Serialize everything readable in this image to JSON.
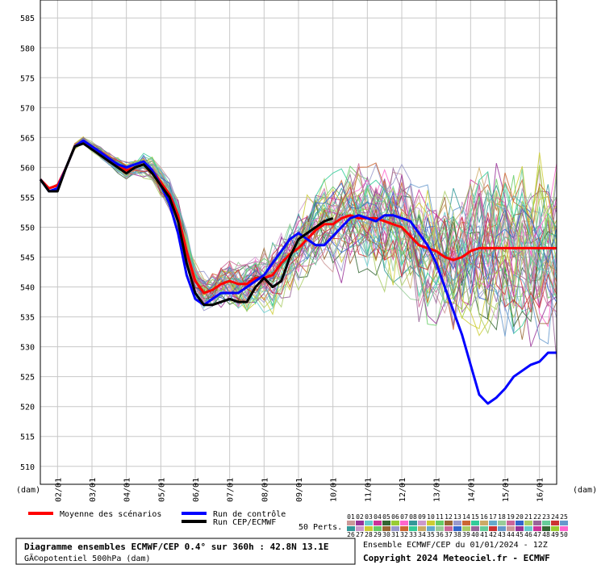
{
  "chart_data": {
    "type": "line",
    "title": "Diagramme ensembles ECMWF/CEP 0.4° sur 360h : 42.8N 13.1E",
    "subtitle": "GÃ©opotentiel 500hPa (dam)",
    "ylabel_left": "(dam)",
    "ylabel_right": "(dam)",
    "ylim": [
      507,
      588
    ],
    "yticks": [
      510,
      515,
      520,
      525,
      530,
      535,
      540,
      545,
      550,
      555,
      560,
      565,
      570,
      575,
      580,
      585
    ],
    "xlim": [
      0,
      120
    ],
    "xticks": [
      {
        "x": 4,
        "label": "02/01"
      },
      {
        "x": 12,
        "label": "03/01"
      },
      {
        "x": 20,
        "label": "04/01"
      },
      {
        "x": 28,
        "label": "05/01"
      },
      {
        "x": 36,
        "label": "06/01"
      },
      {
        "x": 44,
        "label": "07/01"
      },
      {
        "x": 52,
        "label": "08/01"
      },
      {
        "x": 60,
        "label": "09/01"
      },
      {
        "x": 68,
        "label": "10/01"
      },
      {
        "x": 76,
        "label": "11/01"
      },
      {
        "x": 84,
        "label": "12/01"
      },
      {
        "x": 92,
        "label": "13/01"
      },
      {
        "x": 100,
        "label": "14/01"
      },
      {
        "x": 108,
        "label": "15/01"
      },
      {
        "x": 116,
        "label": "16/01"
      }
    ],
    "grid": true,
    "series": [
      {
        "name": "Moyenne des scénarios",
        "color": "#ff0000",
        "x": [
          0,
          2,
          4,
          6,
          8,
          10,
          12,
          14,
          16,
          18,
          20,
          22,
          24,
          26,
          28,
          30,
          32,
          34,
          36,
          38,
          40,
          42,
          44,
          46,
          48,
          50,
          52,
          54,
          56,
          58,
          60,
          62,
          64,
          66,
          68,
          70,
          72,
          74,
          76,
          78,
          80,
          82,
          84,
          86,
          88,
          90,
          92,
          94,
          96,
          98,
          100,
          102,
          104,
          106,
          108,
          110,
          112,
          114,
          116,
          118,
          120
        ],
        "y": [
          558,
          556.5,
          557,
          560,
          563.5,
          564.5,
          563.5,
          562.5,
          561.5,
          560.5,
          559.5,
          560,
          560.5,
          559.5,
          557.5,
          555.5,
          552,
          546,
          541,
          539,
          539.5,
          540.5,
          541,
          540.5,
          540.5,
          541.5,
          541.5,
          542,
          544,
          545.5,
          546.5,
          548,
          549.5,
          550.5,
          550.5,
          551.5,
          552,
          551.5,
          551.5,
          551.5,
          551,
          550.5,
          550,
          548.5,
          547,
          546.5,
          546,
          545,
          544.5,
          545,
          546,
          546.5,
          546.5,
          546.5,
          546.5,
          546.5,
          546.5,
          546.5,
          546.5,
          546.5,
          546.5
        ]
      },
      {
        "name": "Run de contrôle",
        "color": "#0000ff",
        "x": [
          0,
          2,
          4,
          6,
          8,
          10,
          12,
          14,
          16,
          18,
          20,
          22,
          24,
          26,
          28,
          30,
          32,
          34,
          36,
          38,
          40,
          42,
          44,
          46,
          48,
          50,
          52,
          54,
          56,
          58,
          60,
          62,
          64,
          66,
          68,
          70,
          72,
          74,
          76,
          78,
          80,
          82,
          84,
          86,
          88,
          90,
          92,
          94,
          96,
          98,
          100,
          102,
          104,
          106,
          108,
          110,
          112,
          114,
          116,
          118,
          120
        ],
        "y": [
          558,
          556,
          556.5,
          560,
          563.5,
          564.5,
          563.5,
          562.5,
          561.5,
          560.5,
          560,
          560.5,
          561,
          559.5,
          557,
          554,
          549,
          542,
          538,
          537,
          538,
          539,
          539,
          539,
          540,
          541,
          542,
          544,
          546,
          548,
          549,
          548,
          547,
          547,
          548.5,
          550,
          551.5,
          552,
          551.5,
          551,
          552,
          552,
          551.5,
          551,
          549,
          547,
          544,
          540,
          536,
          532,
          527,
          522,
          520.5,
          521.5,
          523,
          525,
          526,
          527,
          527.5,
          529,
          529
        ]
      },
      {
        "name": "Run CEP/ECMWF",
        "color": "#000000",
        "x": [
          0,
          2,
          4,
          6,
          8,
          10,
          12,
          14,
          16,
          18,
          20,
          22,
          24,
          26,
          28,
          30,
          32,
          34,
          36,
          38,
          40,
          42,
          44,
          46,
          48,
          50,
          52,
          54,
          56,
          58,
          60,
          62,
          64,
          66,
          68
        ],
        "y": [
          558,
          556,
          556,
          560,
          563.5,
          564,
          563,
          562,
          561,
          560,
          559,
          560,
          560.5,
          559,
          557,
          555,
          551,
          544,
          539,
          537,
          537,
          537.5,
          538,
          537.5,
          537.5,
          540,
          541.5,
          540,
          541,
          545,
          548,
          549,
          550,
          551,
          551.5
        ]
      }
    ],
    "legend": [
      {
        "label": "Moyenne des scénarios",
        "color": "#ff0000"
      },
      {
        "label": "Run de contrôle",
        "color": "#0000ff"
      },
      {
        "label": "Run CEP/ECMWF",
        "color": "#000000"
      }
    ],
    "perturbations_label": "50 Perts.",
    "perturbation_ids_row1": [
      "01",
      "02",
      "03",
      "04",
      "05",
      "06",
      "07",
      "08",
      "09",
      "10",
      "11",
      "12",
      "13",
      "14",
      "15",
      "16",
      "17",
      "18",
      "19",
      "20",
      "21",
      "22",
      "23",
      "24",
      "25"
    ],
    "perturbation_ids_row2": [
      "26",
      "27",
      "28",
      "29",
      "30",
      "31",
      "32",
      "33",
      "34",
      "35",
      "36",
      "37",
      "38",
      "39",
      "40",
      "41",
      "42",
      "43",
      "44",
      "45",
      "46",
      "47",
      "48",
      "49",
      "50"
    ],
    "perturbation_colors": [
      "#cc9999",
      "#993399",
      "#66cccc",
      "#cc3399",
      "#336633",
      "#99cc33",
      "#ff66cc",
      "#339999",
      "#cc99cc",
      "#cccc33",
      "#66cc66",
      "#996633",
      "#9999cc",
      "#cc6633",
      "#33cc99",
      "#ccaa66",
      "#66aacc",
      "#99cc99",
      "#cc6699",
      "#3366cc",
      "#aacc66",
      "#996699",
      "#66cc99",
      "#cc3333",
      "#6699cc"
    ],
    "info_line1": "Ensemble ECMWF/CEP du 01/01/2024 - 12Z",
    "info_line2": "Copyright 2024 Meteociel.fr - ECMWF"
  }
}
